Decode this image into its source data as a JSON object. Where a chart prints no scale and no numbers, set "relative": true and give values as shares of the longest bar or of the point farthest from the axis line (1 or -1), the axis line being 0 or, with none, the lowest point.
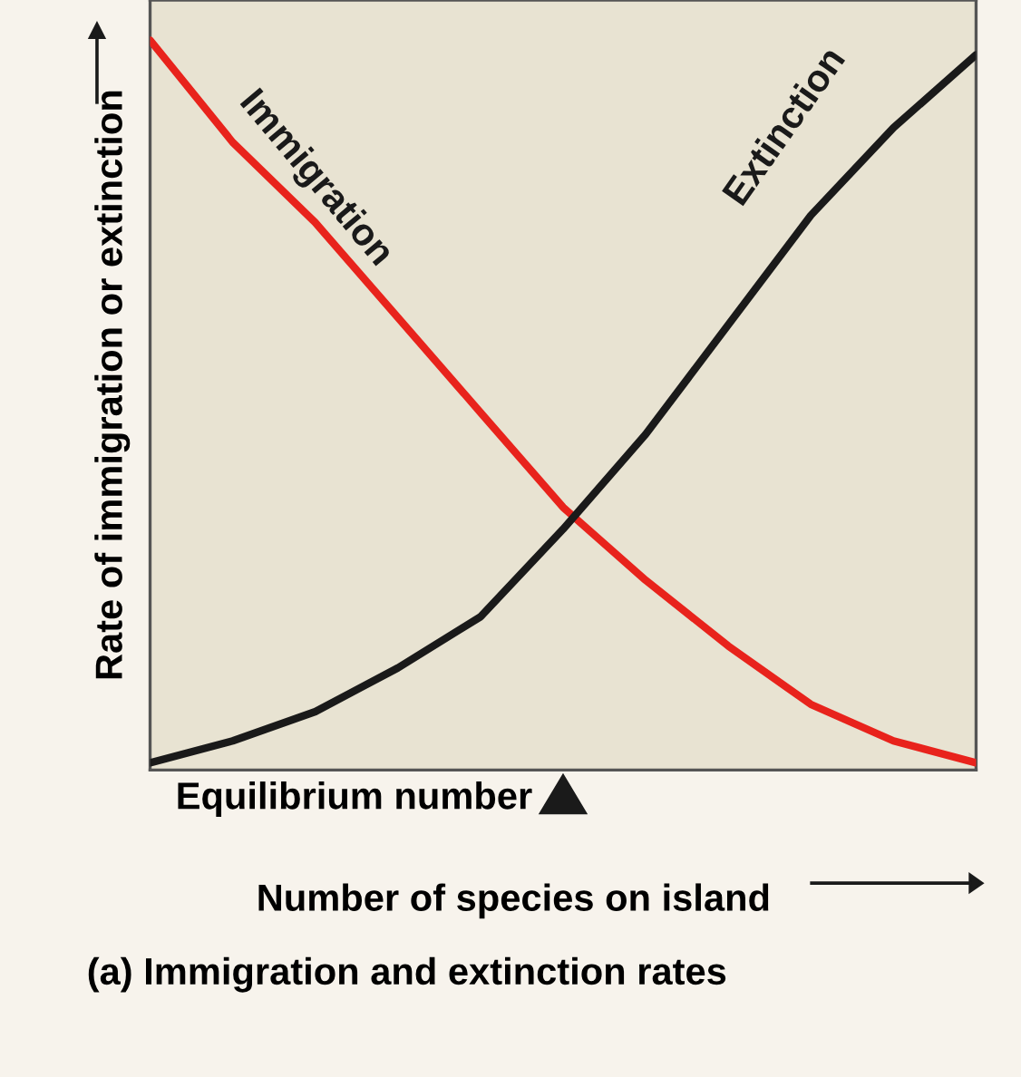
{
  "chart_data": {
    "type": "line",
    "relative": true,
    "xlabel": "Number of species on island",
    "ylabel": "Rate of immigration or extinction",
    "categories": [
      null,
      null,
      null,
      null,
      null,
      null,
      null,
      null,
      null,
      null,
      null
    ],
    "series": [
      {
        "name": "Immigration",
        "color": "#e8231c",
        "values": [
          1,
          0.86,
          0.75,
          0.62,
          0.49,
          0.36,
          0.26,
          0.17,
          0.09,
          0.04,
          0.01
        ]
      },
      {
        "name": "Extinction",
        "color": "#1a1a1a",
        "values": [
          0.01,
          0.04,
          0.08,
          0.14,
          0.21,
          0.33,
          0.46,
          0.61,
          0.76,
          0.88,
          0.98
        ]
      }
    ],
    "annotations": [
      "Equilibrium number",
      "(a) Immigration and extinction rates"
    ],
    "legend": false,
    "marker": "none",
    "line_style": "solid"
  }
}
